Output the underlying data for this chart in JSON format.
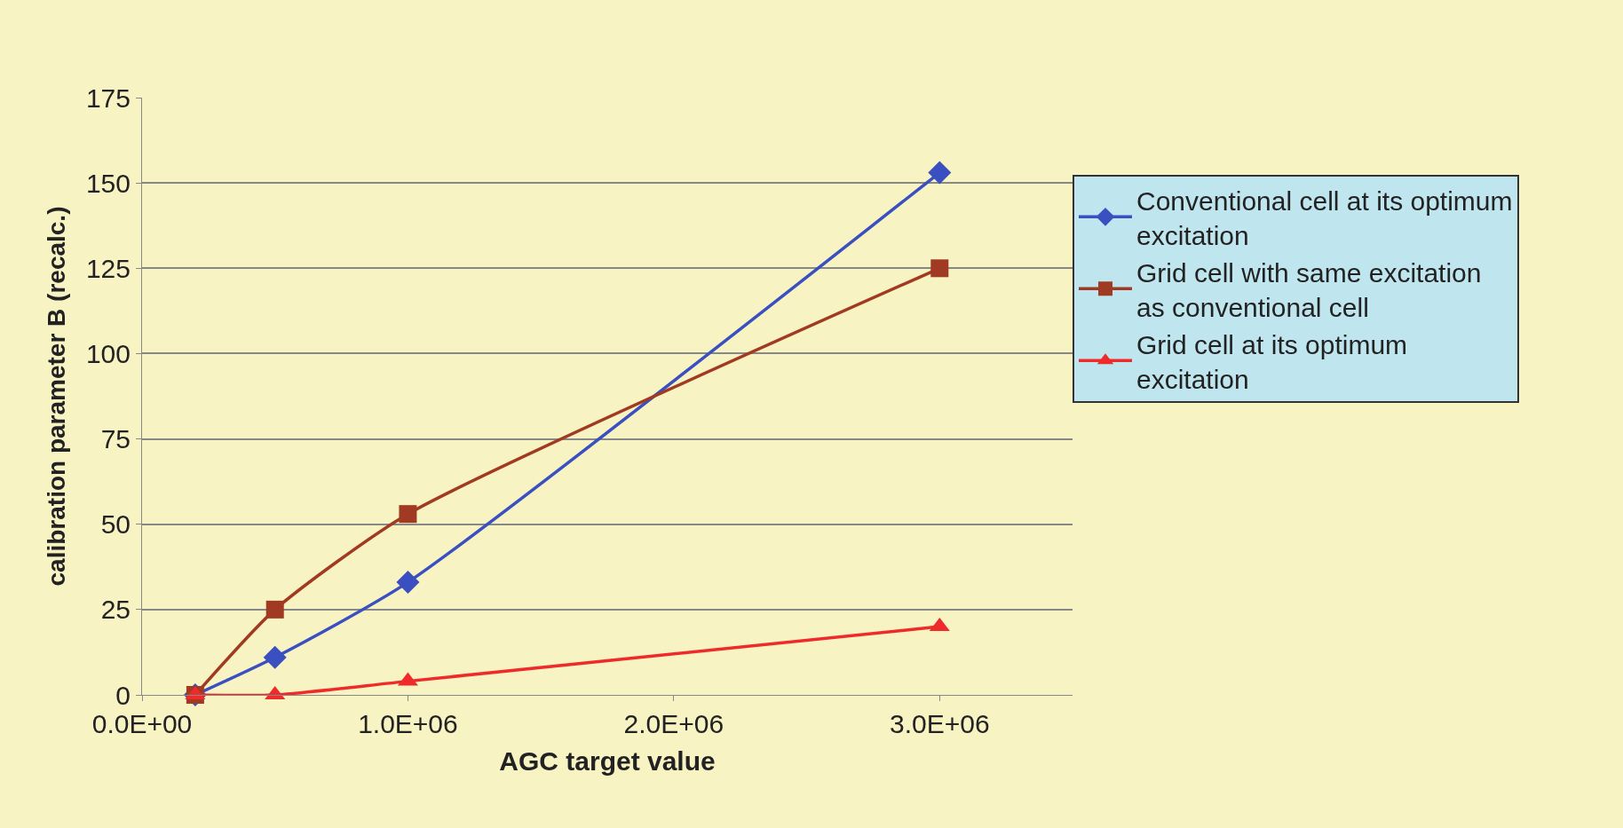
{
  "chart_data": {
    "type": "line",
    "xlabel": "AGC target value",
    "ylabel": "calibration parameter B (recalc.)",
    "x": [
      200000,
      500000,
      1000000,
      3000000
    ],
    "series": [
      {
        "name": "Conventional cell at its optimum excitation",
        "color": "#3a4fc0",
        "marker": "diamond",
        "values": [
          0,
          11,
          33,
          153
        ]
      },
      {
        "name": "Grid cell with same excitation as conventional cell",
        "color": "#a03a22",
        "marker": "square",
        "values": [
          0,
          25,
          53,
          125
        ]
      },
      {
        "name": "Grid cell at its optimum excitation",
        "color": "#ee2a2a",
        "marker": "triangle",
        "values": [
          0,
          0,
          4,
          20
        ]
      }
    ],
    "xlim": [
      0,
      3500000
    ],
    "xticks": [
      {
        "value": 0,
        "label": "0.0E+00"
      },
      {
        "value": 1000000,
        "label": "1.0E+06"
      },
      {
        "value": 2000000,
        "label": "2.0E+06"
      },
      {
        "value": 3000000,
        "label": "3.0E+06"
      }
    ],
    "ylim": [
      0,
      175
    ],
    "yticks": [
      0,
      25,
      50,
      75,
      100,
      125,
      150,
      175
    ],
    "grid": "y",
    "legend": "right",
    "line_style": "solid"
  }
}
